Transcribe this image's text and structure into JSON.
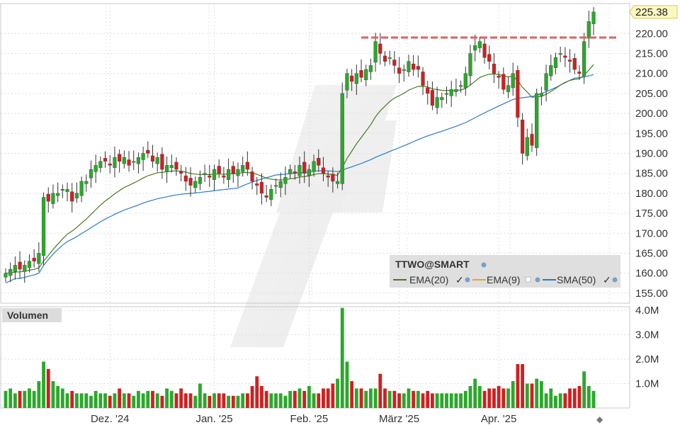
{
  "chart_data": [
    {
      "type": "candlestick",
      "symbol_label": "TTWO@SMART",
      "last_price": "225.38",
      "y_ticks": [
        "155.00",
        "160.00",
        "165.00",
        "170.00",
        "175.00",
        "180.00",
        "185.00",
        "190.00",
        "195.00",
        "200.00",
        "205.00",
        "210.00",
        "215.00",
        "220.00"
      ],
      "ylim": [
        152.5,
        227.5
      ],
      "x_labels": [
        {
          "label": "Dez. '24",
          "index": 22
        },
        {
          "label": "Jan. '25",
          "index": 44
        },
        {
          "label": "Feb. '25",
          "index": 64
        },
        {
          "label": "März '25",
          "index": 83
        },
        {
          "label": "Apr. '25",
          "index": 104
        }
      ],
      "resistance_level": 219,
      "legend": [
        {
          "label": "EMA(20)",
          "color": "#4a7a1e"
        },
        {
          "label": "EMA(9)",
          "color": "#f0a030"
        },
        {
          "label": "SMA(50)",
          "color": "#2a7ac8"
        }
      ],
      "colors": {
        "up": "#2aa92a",
        "down": "#d02020",
        "resistance": "#e06060"
      },
      "closes": [
        160,
        161,
        162,
        161,
        162,
        163,
        163,
        165,
        179,
        178,
        180,
        180,
        181,
        181,
        178,
        180,
        183,
        183,
        186,
        187,
        188,
        188,
        187,
        189,
        188,
        189,
        187,
        188,
        189,
        190,
        190,
        188,
        189,
        186,
        187,
        187,
        186,
        185,
        183,
        182,
        183,
        184,
        185,
        184,
        186,
        185,
        184,
        186,
        185,
        186,
        187,
        186,
        183,
        182,
        180,
        179,
        181,
        182,
        183,
        184,
        186,
        185,
        187,
        185,
        186,
        188,
        187,
        185,
        184,
        183,
        183,
        205,
        210,
        208,
        210,
        209,
        211,
        212,
        218,
        215,
        213,
        214,
        212,
        210,
        211,
        213,
        211,
        211,
        207,
        205,
        202,
        204,
        204,
        205,
        206,
        206,
        207,
        210,
        215,
        217,
        218,
        214,
        213,
        210,
        209,
        206,
        207,
        210,
        199,
        190,
        194,
        192,
        205,
        205,
        210,
        212,
        214,
        215,
        214,
        213,
        211,
        210,
        218,
        223,
        225.4
      ],
      "volume": {
        "title": "Volumen",
        "y_ticks": [
          "1.0M",
          "2.0M",
          "3.0M",
          "4.0M"
        ],
        "ylim": [
          0,
          4.15
        ],
        "unit": "M",
        "values": [
          0.7,
          0.8,
          0.6,
          0.7,
          0.7,
          0.8,
          0.7,
          1.1,
          1.9,
          1.6,
          1.1,
          0.9,
          0.8,
          0.6,
          0.7,
          0.6,
          0.6,
          0.6,
          0.5,
          0.7,
          0.6,
          0.6,
          0.5,
          0.6,
          0.8,
          0.6,
          0.6,
          0.5,
          0.7,
          0.6,
          0.7,
          0.7,
          0.6,
          0.5,
          0.8,
          0.7,
          0.6,
          0.8,
          0.6,
          0.6,
          0.5,
          1.0,
          0.6,
          0.5,
          0.6,
          0.6,
          0.6,
          0.5,
          0.5,
          0.5,
          0.6,
          0.6,
          0.9,
          1.3,
          0.9,
          0.7,
          0.6,
          0.6,
          0.6,
          0.5,
          0.7,
          0.7,
          0.8,
          0.7,
          0.9,
          0.6,
          0.6,
          0.8,
          0.8,
          1.0,
          1.2,
          4.1,
          1.9,
          1.1,
          0.8,
          0.8,
          0.7,
          0.8,
          0.8,
          1.4,
          0.8,
          0.7,
          0.7,
          0.6,
          0.6,
          0.8,
          0.7,
          0.7,
          0.6,
          0.7,
          0.6,
          0.6,
          0.6,
          0.6,
          0.6,
          0.6,
          0.6,
          0.7,
          0.9,
          1.2,
          0.9,
          0.7,
          0.8,
          0.8,
          0.9,
          0.8,
          0.8,
          1.1,
          1.8,
          1.8,
          1.0,
          1.0,
          1.2,
          1.1,
          0.6,
          0.8,
          0.5,
          0.6,
          0.6,
          0.8,
          0.8,
          0.9,
          1.5,
          0.9,
          0.7
        ]
      }
    }
  ]
}
